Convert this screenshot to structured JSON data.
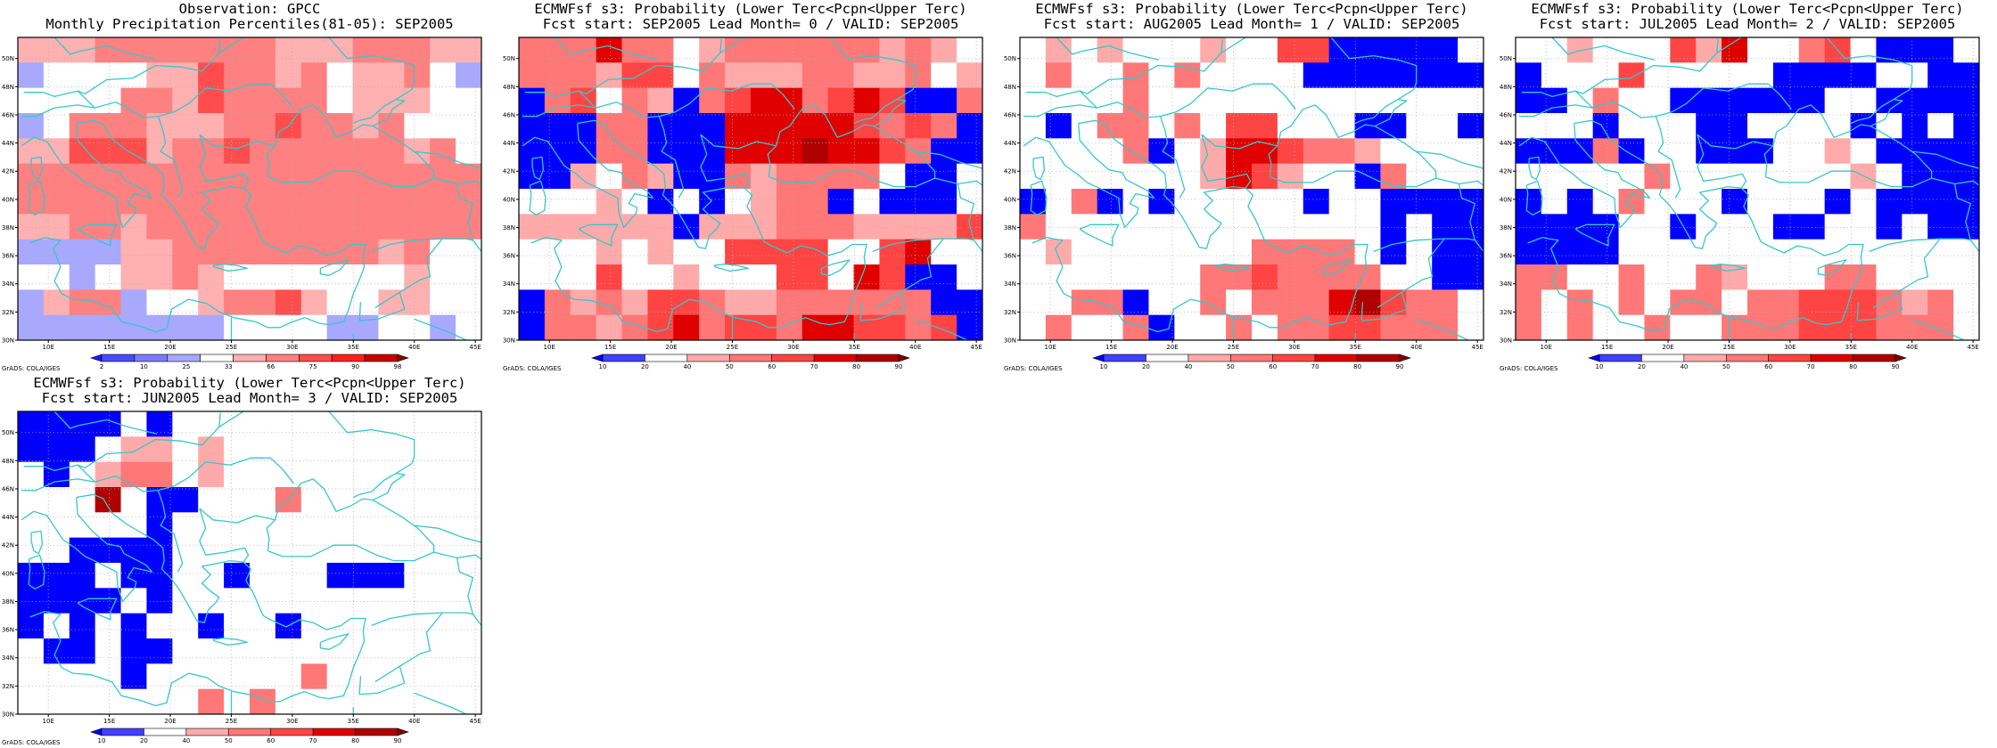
{
  "map_extent": {
    "lon_min": 7.5,
    "lon_max": 45.5,
    "lat_min": 30,
    "lat_max": 51.5
  },
  "lon_ticks": [
    "10E",
    "15E",
    "20E",
    "25E",
    "30E",
    "35E",
    "40E",
    "45E"
  ],
  "lat_ticks": [
    "30N",
    "32N",
    "34N",
    "36N",
    "38N",
    "40N",
    "42N",
    "44N",
    "46N",
    "48N",
    "50N"
  ],
  "credit": "GrADS: COLA/IGES",
  "colors": {
    "coast": "#35c8c8",
    "grid": "#b0b0b0",
    "obs_scale": [
      "#1a1aff",
      "#4a4aff",
      "#7a7aff",
      "#a8a8ff",
      "#ffffff",
      "#ffb0b0",
      "#ff8080",
      "#ff4c4c",
      "#ff1e1e",
      "#c80000",
      "#8c0000"
    ],
    "prob_scale": [
      "#0000ff",
      "#4040ff",
      "#ffffff",
      "#ffaaaa",
      "#ff7777",
      "#ff4444",
      "#e00000",
      "#b00000",
      "#800000"
    ]
  },
  "panels": [
    {
      "title1": "Observation: GPCC",
      "title2": "Monthly Precipitation Percentiles(81-05): SEP2005",
      "scale": "obs",
      "cbar_labels": [
        "2",
        "10",
        "25",
        "33",
        "66",
        "75",
        "90",
        "98"
      ],
      "grid": [
        [
          5,
          5,
          5,
          6,
          6,
          6,
          6,
          6,
          6,
          6,
          5,
          5,
          5,
          6,
          6,
          6,
          5,
          5
        ],
        [
          3,
          4,
          4,
          4,
          4,
          5,
          5,
          7,
          6,
          6,
          5,
          6,
          4,
          5,
          5,
          6,
          4,
          3
        ],
        [
          4,
          4,
          4,
          4,
          6,
          6,
          5,
          7,
          6,
          6,
          6,
          6,
          4,
          5,
          5,
          5,
          4,
          4
        ],
        [
          3,
          4,
          6,
          6,
          6,
          5,
          5,
          5,
          6,
          6,
          7,
          6,
          6,
          5,
          6,
          4,
          4,
          4
        ],
        [
          5,
          5,
          7,
          7,
          7,
          5,
          6,
          6,
          7,
          6,
          6,
          6,
          6,
          6,
          6,
          5,
          6,
          4
        ],
        [
          6,
          6,
          6,
          6,
          6,
          6,
          6,
          6,
          6,
          6,
          6,
          6,
          6,
          6,
          6,
          6,
          6,
          6
        ],
        [
          6,
          6,
          6,
          6,
          6,
          6,
          6,
          6,
          6,
          6,
          6,
          6,
          6,
          6,
          6,
          6,
          6,
          6
        ],
        [
          5,
          5,
          6,
          6,
          5,
          6,
          6,
          6,
          6,
          6,
          6,
          6,
          6,
          6,
          6,
          6,
          6,
          6
        ],
        [
          3,
          3,
          3,
          3,
          5,
          5,
          6,
          6,
          6,
          6,
          6,
          6,
          6,
          6,
          5,
          6,
          4,
          4
        ],
        [
          4,
          4,
          3,
          4,
          5,
          5,
          6,
          5,
          4,
          4,
          4,
          4,
          4,
          4,
          4,
          5,
          4,
          4
        ],
        [
          3,
          5,
          6,
          6,
          3,
          4,
          4,
          5,
          6,
          6,
          7,
          5,
          4,
          4,
          5,
          5,
          4,
          4
        ],
        [
          3,
          3,
          3,
          3,
          3,
          3,
          3,
          3,
          4,
          4,
          4,
          4,
          3,
          3,
          4,
          4,
          3,
          4
        ]
      ]
    },
    {
      "title1": "ECMWFsf s3: Probability (Lower Terc<Pcpn<Upper Terc)",
      "title2": "Fcst start: SEP2005   Lead Month= 0 / VALID: SEP2005",
      "scale": "prob",
      "cbar_labels": [
        "10",
        "20",
        "40",
        "50",
        "60",
        "70",
        "80",
        "90"
      ],
      "grid": [
        [
          4,
          4,
          4,
          6,
          4,
          4,
          2,
          3,
          4,
          4,
          4,
          4,
          4,
          4,
          3,
          4,
          3,
          2
        ],
        [
          4,
          4,
          4,
          3,
          5,
          5,
          2,
          4,
          3,
          3,
          3,
          4,
          4,
          3,
          3,
          4,
          2,
          3
        ],
        [
          0,
          4,
          5,
          2,
          4,
          3,
          0,
          4,
          5,
          6,
          6,
          4,
          5,
          6,
          5,
          0,
          0,
          4
        ],
        [
          0,
          0,
          0,
          4,
          4,
          0,
          0,
          0,
          6,
          6,
          6,
          6,
          6,
          5,
          4,
          5,
          4,
          0
        ],
        [
          0,
          0,
          0,
          4,
          4,
          0,
          0,
          0,
          6,
          6,
          6,
          7,
          6,
          6,
          5,
          4,
          0,
          0
        ],
        [
          0,
          0,
          3,
          2,
          4,
          3,
          0,
          0,
          4,
          3,
          4,
          4,
          4,
          4,
          2,
          0,
          0,
          2
        ],
        [
          2,
          2,
          2,
          3,
          2,
          0,
          2,
          0,
          2,
          3,
          4,
          4,
          0,
          2,
          0,
          0,
          0,
          2
        ],
        [
          3,
          3,
          3,
          3,
          3,
          3,
          0,
          3,
          3,
          3,
          4,
          4,
          4,
          3,
          3,
          3,
          3,
          5
        ],
        [
          2,
          2,
          2,
          3,
          2,
          3,
          2,
          2,
          5,
          5,
          5,
          5,
          2,
          2,
          5,
          6,
          2,
          2
        ],
        [
          2,
          2,
          2,
          5,
          2,
          2,
          3,
          2,
          2,
          2,
          5,
          5,
          2,
          6,
          5,
          0,
          0,
          2
        ],
        [
          0,
          4,
          3,
          4,
          3,
          5,
          5,
          4,
          3,
          3,
          4,
          4,
          4,
          4,
          4,
          4,
          0,
          0
        ],
        [
          0,
          4,
          4,
          3,
          4,
          5,
          6,
          4,
          5,
          5,
          4,
          6,
          6,
          5,
          5,
          4,
          5,
          0
        ]
      ]
    },
    {
      "title1": "ECMWFsf s3: Probability (Lower Terc<Pcpn<Upper Terc)",
      "title2": "Fcst start: AUG2005   Lead Month= 1 / VALID: SEP2005",
      "scale": "prob",
      "cbar_labels": [
        "10",
        "20",
        "40",
        "50",
        "60",
        "70",
        "80",
        "90"
      ],
      "grid": [
        [
          2,
          3,
          2,
          3,
          2,
          2,
          2,
          3,
          2,
          2,
          5,
          5,
          0,
          0,
          0,
          0,
          0,
          2
        ],
        [
          2,
          4,
          2,
          2,
          4,
          2,
          4,
          2,
          2,
          2,
          2,
          0,
          0,
          0,
          0,
          0,
          0,
          0
        ],
        [
          2,
          2,
          2,
          2,
          4,
          2,
          2,
          2,
          2,
          2,
          2,
          2,
          2,
          2,
          2,
          2,
          2,
          2
        ],
        [
          2,
          0,
          2,
          4,
          4,
          2,
          4,
          2,
          5,
          5,
          2,
          2,
          2,
          0,
          0,
          2,
          2,
          0
        ],
        [
          2,
          2,
          2,
          2,
          4,
          0,
          2,
          3,
          6,
          6,
          5,
          4,
          4,
          3,
          2,
          2,
          2,
          2
        ],
        [
          2,
          2,
          2,
          2,
          2,
          2,
          2,
          3,
          6,
          5,
          3,
          2,
          2,
          0,
          4,
          2,
          2,
          2
        ],
        [
          0,
          2,
          4,
          0,
          2,
          0,
          2,
          2,
          2,
          2,
          2,
          0,
          2,
          2,
          0,
          0,
          0,
          0
        ],
        [
          4,
          2,
          2,
          2,
          2,
          2,
          2,
          2,
          2,
          2,
          2,
          2,
          2,
          2,
          0,
          2,
          0,
          0
        ],
        [
          2,
          3,
          2,
          2,
          2,
          2,
          2,
          2,
          2,
          4,
          4,
          4,
          4,
          2,
          0,
          2,
          0,
          0
        ],
        [
          2,
          2,
          2,
          2,
          2,
          2,
          2,
          4,
          4,
          5,
          4,
          4,
          4,
          4,
          2,
          2,
          0,
          0
        ],
        [
          2,
          2,
          4,
          4,
          0,
          2,
          2,
          4,
          2,
          4,
          4,
          4,
          6,
          7,
          5,
          4,
          4,
          2
        ],
        [
          2,
          4,
          2,
          2,
          4,
          0,
          2,
          2,
          4,
          2,
          4,
          4,
          5,
          5,
          4,
          4,
          4,
          2
        ]
      ]
    },
    {
      "title1": "ECMWFsf s3: Probability (Lower Terc<Pcpn<Upper Terc)",
      "title2": "Fcst start: JUL2005   Lead Month= 2 / VALID: SEP2005",
      "scale": "prob",
      "cbar_labels": [
        "10",
        "20",
        "40",
        "50",
        "60",
        "70",
        "80",
        "90"
      ],
      "grid": [
        [
          2,
          2,
          3,
          2,
          2,
          2,
          5,
          3,
          6,
          2,
          2,
          4,
          5,
          2,
          0,
          0,
          0,
          2
        ],
        [
          0,
          2,
          2,
          2,
          5,
          2,
          2,
          2,
          2,
          2,
          0,
          0,
          0,
          0,
          2,
          2,
          0,
          0
        ],
        [
          0,
          0,
          2,
          4,
          2,
          2,
          0,
          0,
          0,
          0,
          0,
          0,
          2,
          2,
          0,
          0,
          0,
          0
        ],
        [
          2,
          2,
          2,
          0,
          2,
          2,
          2,
          0,
          0,
          2,
          2,
          2,
          2,
          0,
          2,
          0,
          2,
          0
        ],
        [
          0,
          0,
          0,
          4,
          0,
          2,
          2,
          0,
          0,
          0,
          2,
          2,
          3,
          2,
          0,
          0,
          0,
          0
        ],
        [
          2,
          2,
          2,
          2,
          2,
          4,
          2,
          2,
          2,
          2,
          2,
          2,
          2,
          3,
          2,
          0,
          0,
          0
        ],
        [
          0,
          2,
          0,
          2,
          4,
          2,
          2,
          2,
          0,
          2,
          2,
          2,
          0,
          2,
          0,
          0,
          0,
          0
        ],
        [
          0,
          0,
          0,
          0,
          2,
          2,
          0,
          2,
          2,
          2,
          0,
          0,
          2,
          2,
          0,
          2,
          0,
          0
        ],
        [
          0,
          0,
          0,
          0,
          2,
          2,
          2,
          2,
          2,
          2,
          2,
          2,
          2,
          2,
          2,
          2,
          2,
          2
        ],
        [
          4,
          4,
          2,
          2,
          4,
          2,
          2,
          4,
          3,
          2,
          2,
          2,
          4,
          4,
          2,
          2,
          2,
          2
        ],
        [
          4,
          2,
          4,
          2,
          4,
          2,
          4,
          4,
          2,
          4,
          4,
          5,
          5,
          5,
          4,
          3,
          4,
          2
        ],
        [
          4,
          2,
          4,
          2,
          2,
          4,
          2,
          2,
          4,
          4,
          4,
          5,
          5,
          5,
          4,
          4,
          4,
          2
        ]
      ]
    },
    {
      "title1": "ECMWFsf s3: Probability (Lower Terc<Pcpn<Upper Terc)",
      "title2": "Fcst start: JUN2005   Lead Month= 3 / VALID: SEP2005",
      "scale": "prob",
      "cbar_labels": [
        "10",
        "20",
        "40",
        "50",
        "60",
        "70",
        "80",
        "90"
      ],
      "grid": [
        [
          0,
          0,
          0,
          0,
          2,
          0,
          2,
          2,
          2,
          2,
          2,
          2,
          2,
          2,
          2,
          2,
          2,
          2
        ],
        [
          0,
          0,
          0,
          2,
          3,
          3,
          2,
          3,
          2,
          2,
          2,
          2,
          2,
          2,
          2,
          2,
          2,
          2
        ],
        [
          2,
          0,
          2,
          3,
          4,
          4,
          2,
          3,
          2,
          2,
          2,
          2,
          2,
          2,
          2,
          2,
          2,
          2
        ],
        [
          2,
          2,
          2,
          7,
          2,
          0,
          0,
          2,
          2,
          2,
          4,
          2,
          2,
          2,
          2,
          2,
          2,
          2
        ],
        [
          2,
          2,
          2,
          2,
          2,
          0,
          2,
          2,
          2,
          2,
          2,
          2,
          2,
          2,
          2,
          2,
          2,
          2
        ],
        [
          2,
          2,
          0,
          0,
          0,
          0,
          2,
          2,
          2,
          2,
          2,
          2,
          2,
          2,
          2,
          2,
          2,
          2
        ],
        [
          0,
          0,
          0,
          2,
          0,
          0,
          2,
          2,
          0,
          2,
          2,
          2,
          0,
          0,
          0,
          2,
          2,
          2
        ],
        [
          0,
          0,
          0,
          0,
          2,
          0,
          2,
          2,
          2,
          2,
          2,
          2,
          2,
          2,
          2,
          2,
          2,
          2
        ],
        [
          0,
          2,
          0,
          2,
          0,
          2,
          2,
          0,
          2,
          2,
          0,
          2,
          2,
          2,
          2,
          2,
          2,
          2
        ],
        [
          2,
          0,
          0,
          2,
          0,
          0,
          2,
          2,
          2,
          2,
          2,
          2,
          2,
          2,
          2,
          2,
          2,
          2
        ],
        [
          2,
          2,
          2,
          2,
          0,
          2,
          2,
          2,
          2,
          2,
          2,
          4,
          2,
          2,
          2,
          2,
          2,
          2
        ],
        [
          2,
          2,
          2,
          2,
          2,
          2,
          2,
          4,
          2,
          4,
          2,
          2,
          2,
          2,
          2,
          2,
          2,
          2
        ]
      ]
    }
  ]
}
